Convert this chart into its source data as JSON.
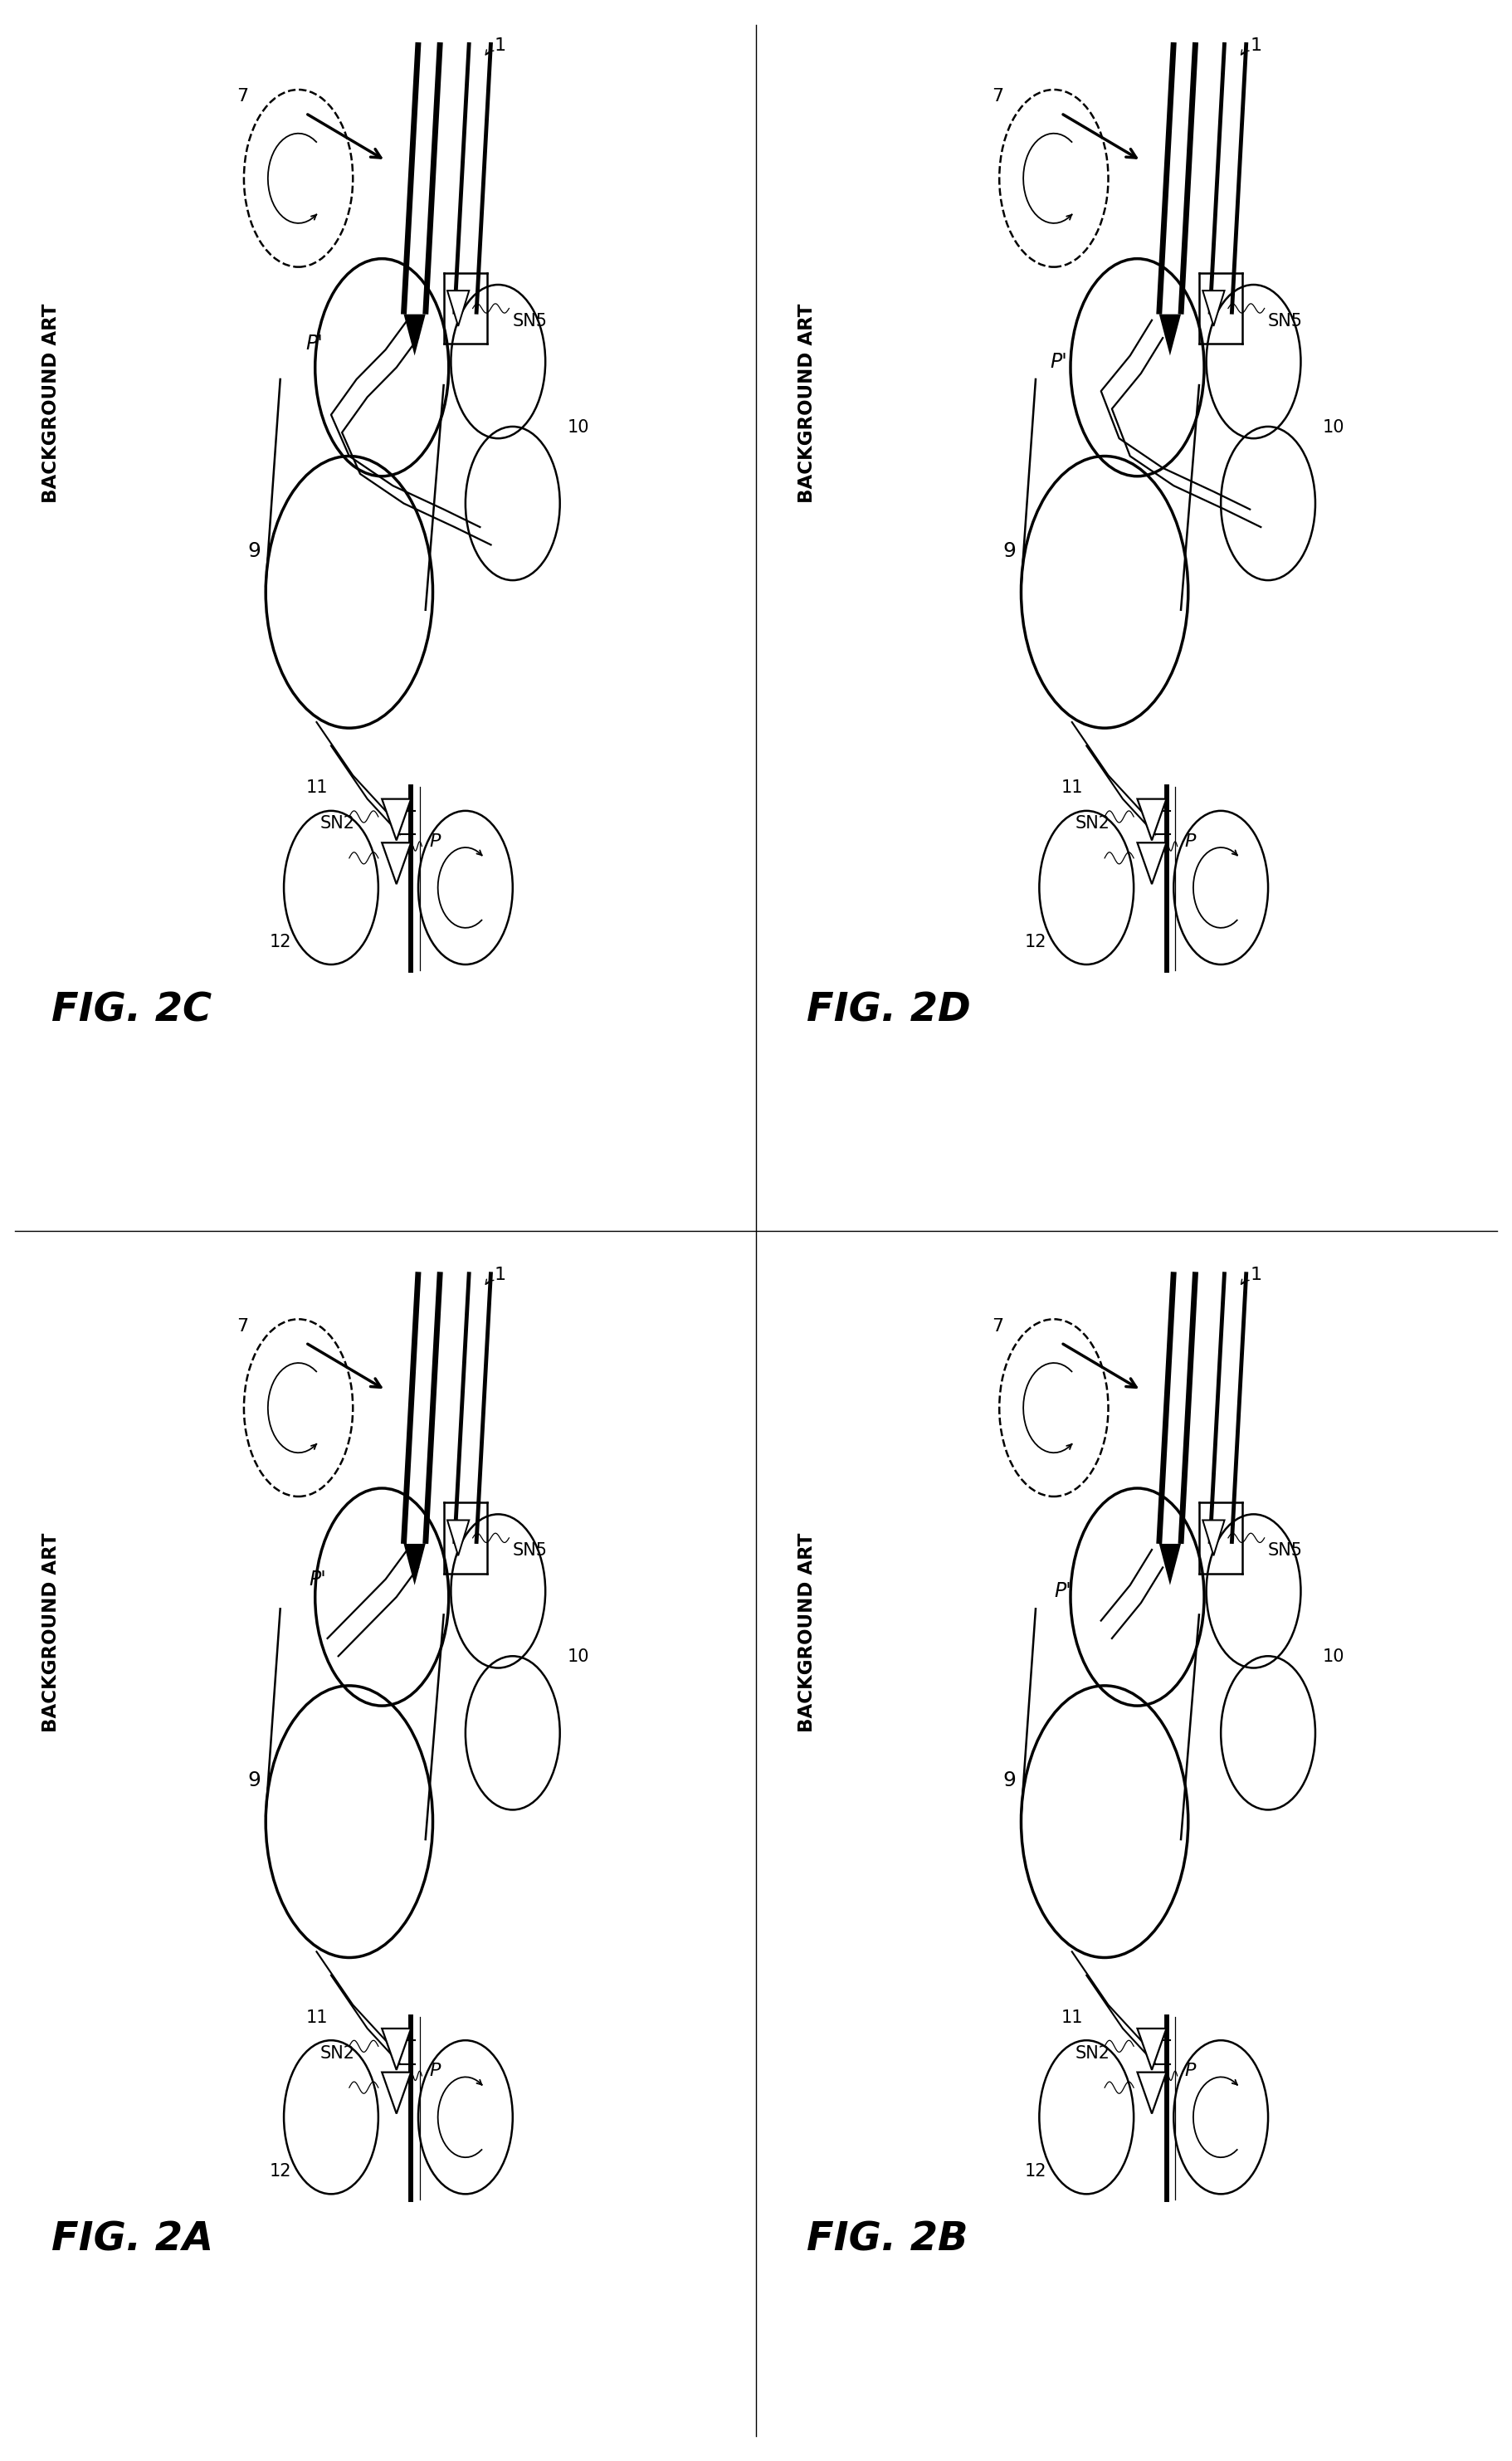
{
  "panels": [
    {
      "label": "FIG. 2C",
      "variant": "C",
      "row": 0,
      "col": 0
    },
    {
      "label": "FIG. 2D",
      "variant": "D",
      "row": 0,
      "col": 1
    },
    {
      "label": "FIG. 2A",
      "variant": "A",
      "row": 1,
      "col": 0
    },
    {
      "label": "FIG. 2B",
      "variant": "B",
      "row": 1,
      "col": 1
    }
  ],
  "bg_color": "#ffffff",
  "fig_label_fontsize": 42,
  "bg_label_fontsize": 22,
  "item_fontsize": 18
}
